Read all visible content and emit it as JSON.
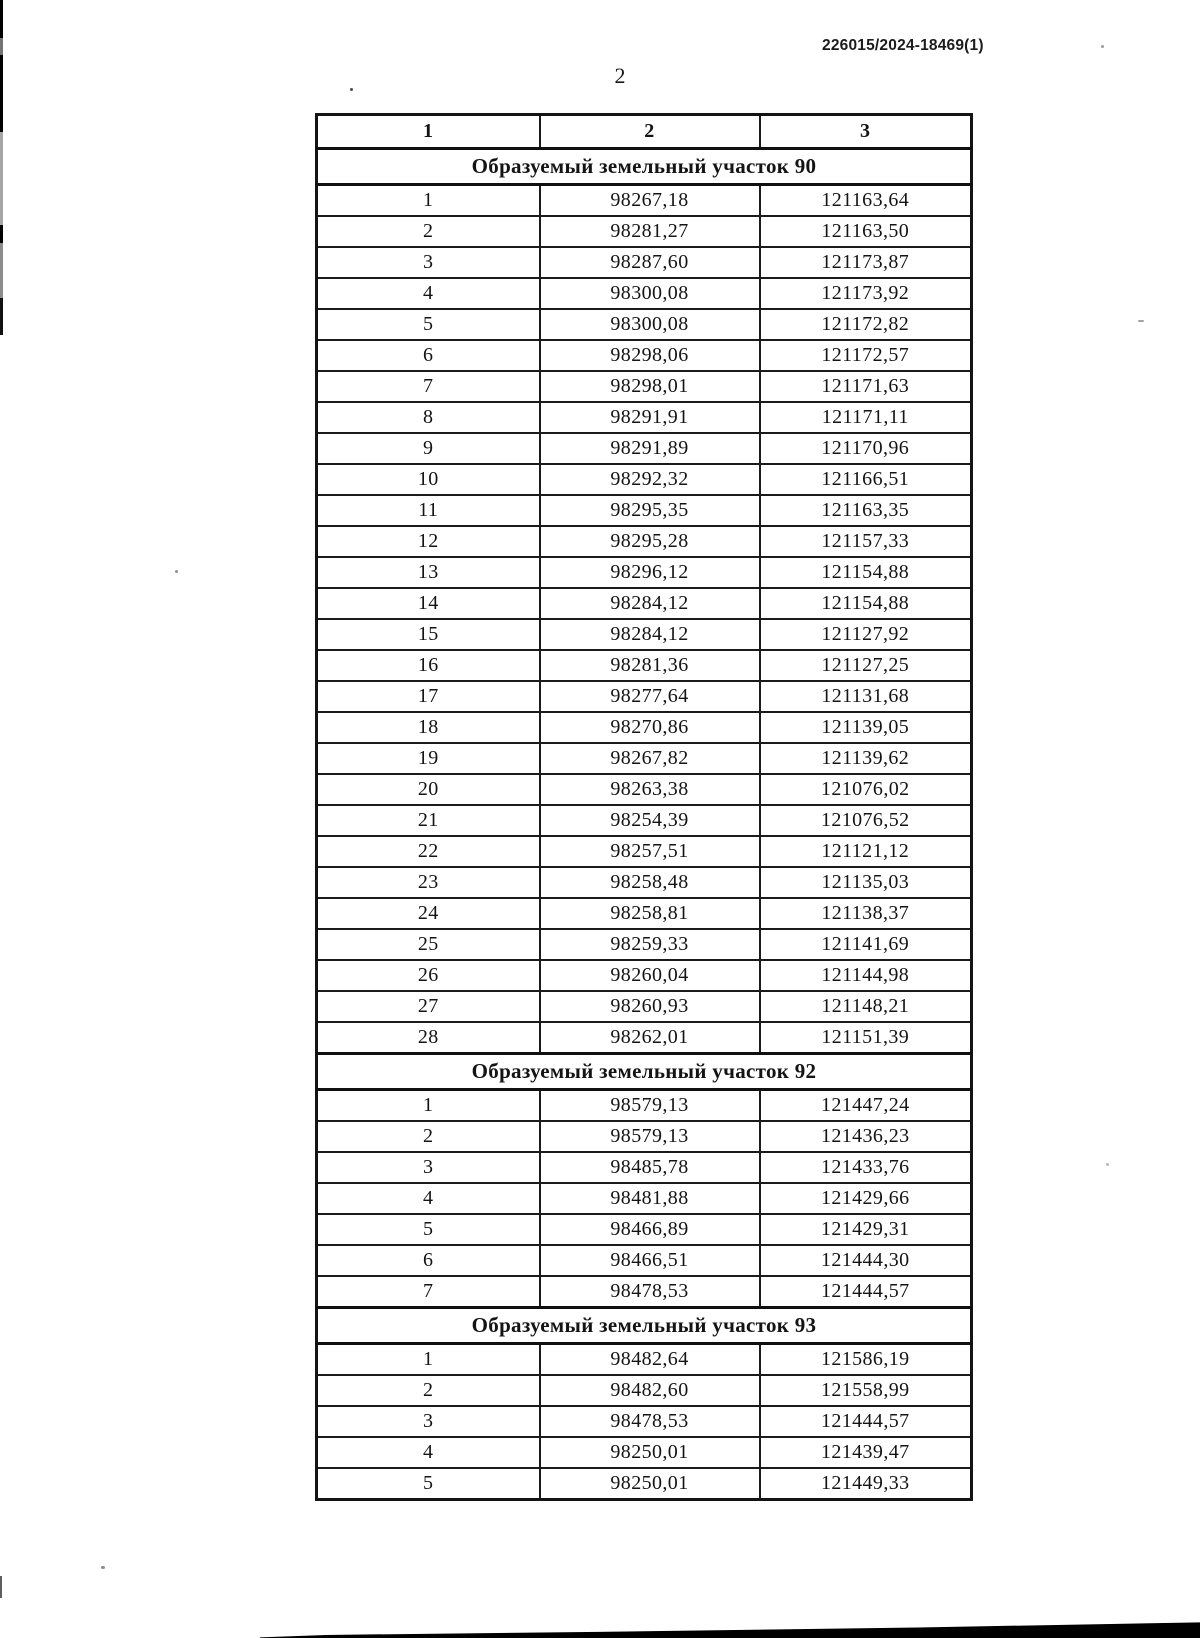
{
  "page": {
    "doc_number": "226015/2024-18469(1)",
    "page_number": "2"
  },
  "table": {
    "columns": [
      "1",
      "2",
      "3"
    ],
    "sections": [
      {
        "title": "Образуемый земельный участок 90",
        "rows": [
          [
            "1",
            "98267,18",
            "121163,64"
          ],
          [
            "2",
            "98281,27",
            "121163,50"
          ],
          [
            "3",
            "98287,60",
            "121173,87"
          ],
          [
            "4",
            "98300,08",
            "121173,92"
          ],
          [
            "5",
            "98300,08",
            "121172,82"
          ],
          [
            "6",
            "98298,06",
            "121172,57"
          ],
          [
            "7",
            "98298,01",
            "121171,63"
          ],
          [
            "8",
            "98291,91",
            "121171,11"
          ],
          [
            "9",
            "98291,89",
            "121170,96"
          ],
          [
            "10",
            "98292,32",
            "121166,51"
          ],
          [
            "11",
            "98295,35",
            "121163,35"
          ],
          [
            "12",
            "98295,28",
            "121157,33"
          ],
          [
            "13",
            "98296,12",
            "121154,88"
          ],
          [
            "14",
            "98284,12",
            "121154,88"
          ],
          [
            "15",
            "98284,12",
            "121127,92"
          ],
          [
            "16",
            "98281,36",
            "121127,25"
          ],
          [
            "17",
            "98277,64",
            "121131,68"
          ],
          [
            "18",
            "98270,86",
            "121139,05"
          ],
          [
            "19",
            "98267,82",
            "121139,62"
          ],
          [
            "20",
            "98263,38",
            "121076,02"
          ],
          [
            "21",
            "98254,39",
            "121076,52"
          ],
          [
            "22",
            "98257,51",
            "121121,12"
          ],
          [
            "23",
            "98258,48",
            "121135,03"
          ],
          [
            "24",
            "98258,81",
            "121138,37"
          ],
          [
            "25",
            "98259,33",
            "121141,69"
          ],
          [
            "26",
            "98260,04",
            "121144,98"
          ],
          [
            "27",
            "98260,93",
            "121148,21"
          ],
          [
            "28",
            "98262,01",
            "121151,39"
          ]
        ]
      },
      {
        "title": "Образуемый земельный участок 92",
        "rows": [
          [
            "1",
            "98579,13",
            "121447,24"
          ],
          [
            "2",
            "98579,13",
            "121436,23"
          ],
          [
            "3",
            "98485,78",
            "121433,76"
          ],
          [
            "4",
            "98481,88",
            "121429,66"
          ],
          [
            "5",
            "98466,89",
            "121429,31"
          ],
          [
            "6",
            "98466,51",
            "121444,30"
          ],
          [
            "7",
            "98478,53",
            "121444,57"
          ]
        ]
      },
      {
        "title": "Образуемый земельный участок 93",
        "rows": [
          [
            "1",
            "98482,64",
            "121586,19"
          ],
          [
            "2",
            "98482,60",
            "121558,99"
          ],
          [
            "3",
            "98478,53",
            "121444,57"
          ],
          [
            "4",
            "98250,01",
            "121439,47"
          ],
          [
            "5",
            "98250,01",
            "121449,33"
          ]
        ]
      }
    ]
  }
}
